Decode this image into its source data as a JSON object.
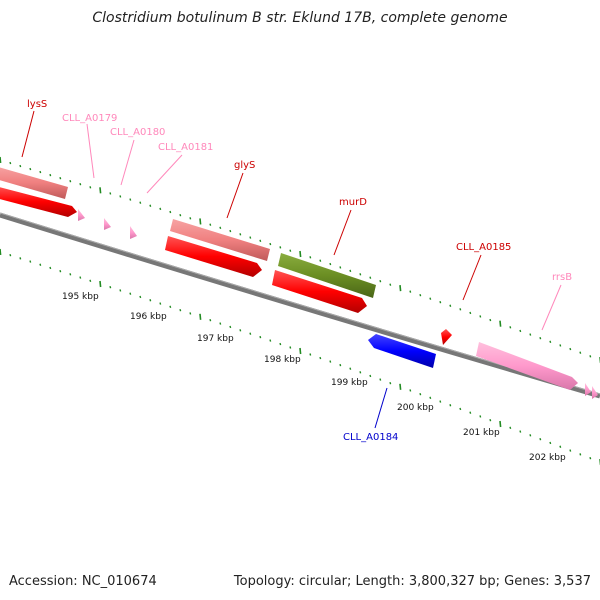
{
  "title": "Clostridium botulinum B str. Eklund 17B, complete genome",
  "footer": {
    "accession": "Accession: NC_010674",
    "summary": "Topology: circular; Length: 3,800,327 bp; Genes: 3,537"
  },
  "colors": {
    "backbone": "#777777",
    "cds_forward": "#ff0000",
    "gene_forward": "#f08080",
    "trna": "#ff99cc",
    "rrna": "#ff99cc",
    "cds_reverse": "#0000ff",
    "murD": "#6b8e23",
    "tick_green": "#228b22"
  },
  "scale": {
    "unit": "kbp",
    "labels": [
      "195 kbp",
      "196 kbp",
      "197 kbp",
      "198 kbp",
      "199 kbp",
      "200 kbp",
      "201 kbp",
      "202 kbp"
    ]
  },
  "genes": [
    {
      "name": "lysS",
      "color": "#cc0000"
    },
    {
      "name": "CLL_A0179",
      "color": "#ff88bb"
    },
    {
      "name": "CLL_A0180",
      "color": "#ff88bb"
    },
    {
      "name": "CLL_A0181",
      "color": "#ff88bb"
    },
    {
      "name": "glyS",
      "color": "#cc0000"
    },
    {
      "name": "murD",
      "color": "#cc0000"
    },
    {
      "name": "CLL_A0185",
      "color": "#cc0000"
    },
    {
      "name": "rrsB",
      "color": "#ff88bb"
    },
    {
      "name": "CLL_A0184",
      "color": "#0000cc"
    }
  ]
}
